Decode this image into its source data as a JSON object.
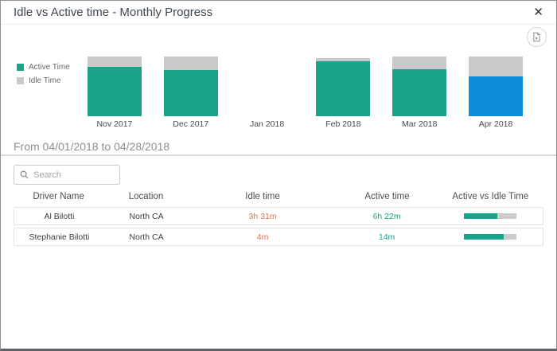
{
  "dialog": {
    "title": "Idle vs Active time - Monthly Progress",
    "close_glyph": "✕"
  },
  "colors": {
    "active_teal": "#18a489",
    "idle_gray": "#c9c9c9",
    "selected_blue": "#0d8dd9",
    "idle_text_orange": "#e2714b",
    "active_text_teal": "#15a38a"
  },
  "chart_data": {
    "type": "bar",
    "stacked": true,
    "legend": [
      {
        "label": "Active Time",
        "color": "#18a489"
      },
      {
        "label": "Idle Time",
        "color": "#c9c9c9"
      }
    ],
    "categories": [
      "Nov 2017",
      "Dec 2017",
      "Jan 2018",
      "Feb 2018",
      "Mar 2018",
      "Apr 2018"
    ],
    "series": [
      {
        "name": "Active Time",
        "values": [
          62,
          58,
          0,
          69,
          59,
          50
        ]
      },
      {
        "name": "Idle Time",
        "values": [
          13,
          17,
          0,
          4,
          16,
          25
        ]
      }
    ],
    "unit": "relative bar height, px (max month total = 75)",
    "selected_category": "Apr 2018",
    "selected_active_color": "#0d8dd9",
    "xlabel": "",
    "ylabel": "",
    "grid": false,
    "legend_position": "left"
  },
  "period": {
    "label": "From 04/01/2018 to 04/28/2018"
  },
  "search": {
    "placeholder": "Search"
  },
  "table": {
    "columns": [
      "Driver Name",
      "Location",
      "Idle time",
      "Active time",
      "Active vs Idle Time"
    ],
    "rows": [
      {
        "driver": "Al Bilotti",
        "location": "North CA",
        "idle_time": "3h 31m",
        "active_time": "6h 22m",
        "active_pct": 64
      },
      {
        "driver": "Stephanie Bilotti",
        "location": "North CA",
        "idle_time": "4m",
        "active_time": "14m",
        "active_pct": 76
      }
    ]
  }
}
